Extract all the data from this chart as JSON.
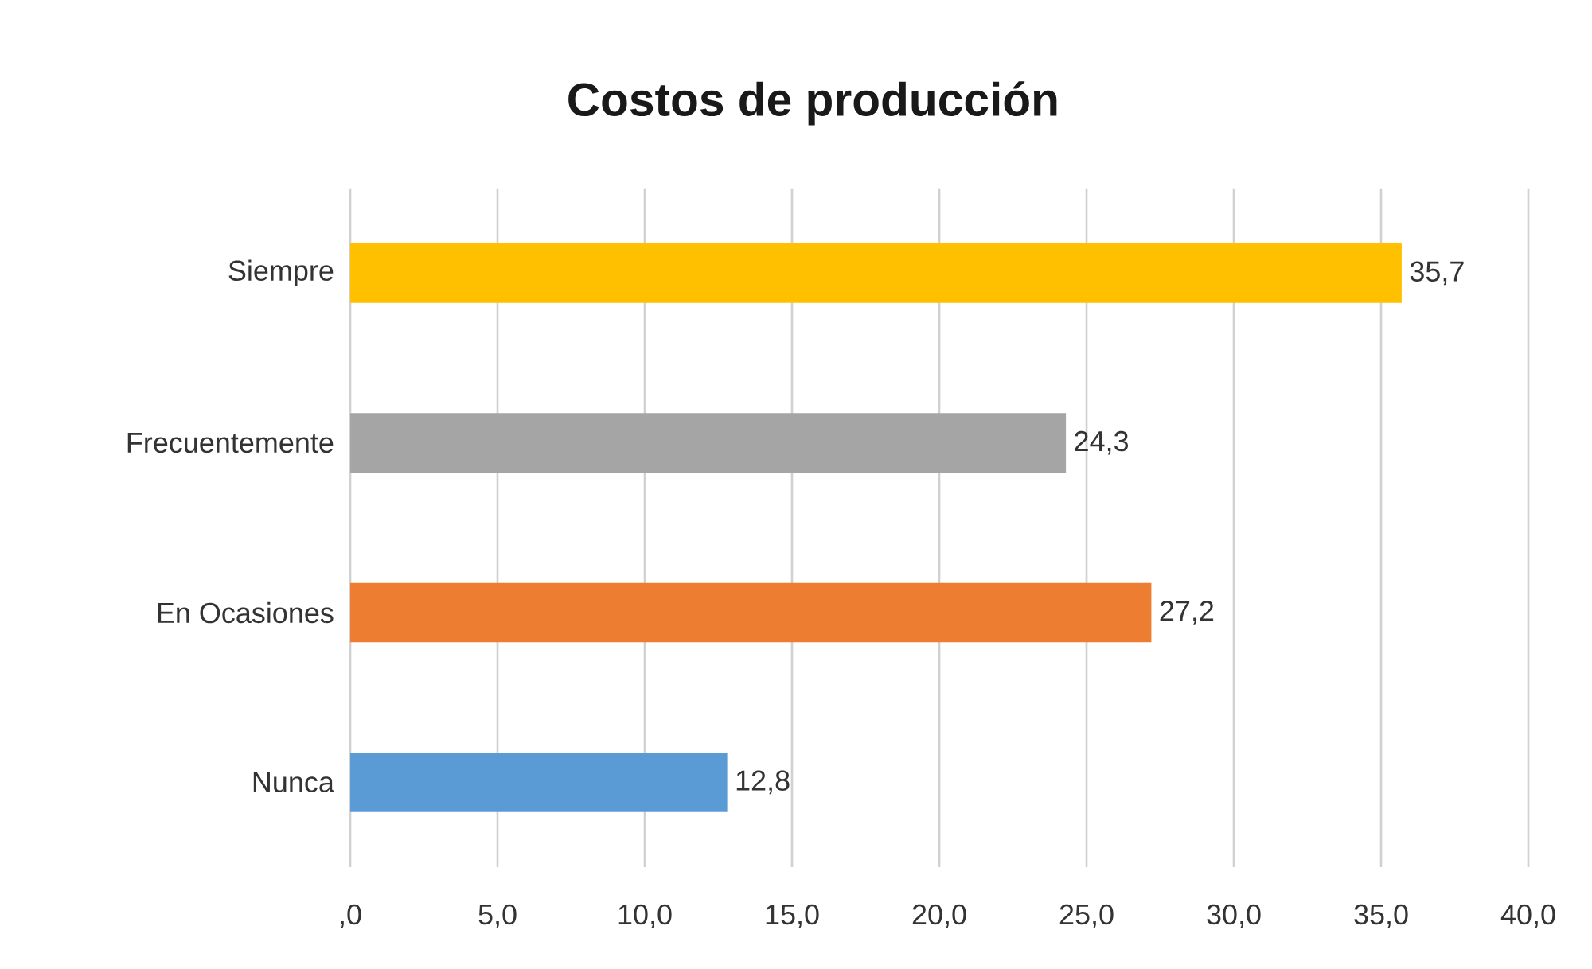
{
  "chart_data": {
    "type": "bar",
    "orientation": "horizontal",
    "title": "Costos de producción",
    "categories": [
      "Siempre",
      "Frecuentemente",
      "En Ocasiones",
      "Nunca"
    ],
    "values": [
      35.7,
      24.3,
      27.2,
      12.8
    ],
    "colors": [
      "#ffc000",
      "#a5a5a5",
      "#ed7d31",
      "#5b9bd5"
    ],
    "value_labels": [
      "35,7",
      "24,3",
      "27,2",
      "12,8"
    ],
    "xlim": [
      0,
      40
    ],
    "xticks": [
      {
        "value": 0,
        "label": ",0"
      },
      {
        "value": 5,
        "label": "5,0"
      },
      {
        "value": 10,
        "label": "10,0"
      },
      {
        "value": 15,
        "label": "15,0"
      },
      {
        "value": 20,
        "label": "20,0"
      },
      {
        "value": 25,
        "label": "25,0"
      },
      {
        "value": 30,
        "label": "30,0"
      },
      {
        "value": 35,
        "label": "35,0"
      },
      {
        "value": 40,
        "label": "40,0"
      }
    ],
    "grid": "x"
  }
}
